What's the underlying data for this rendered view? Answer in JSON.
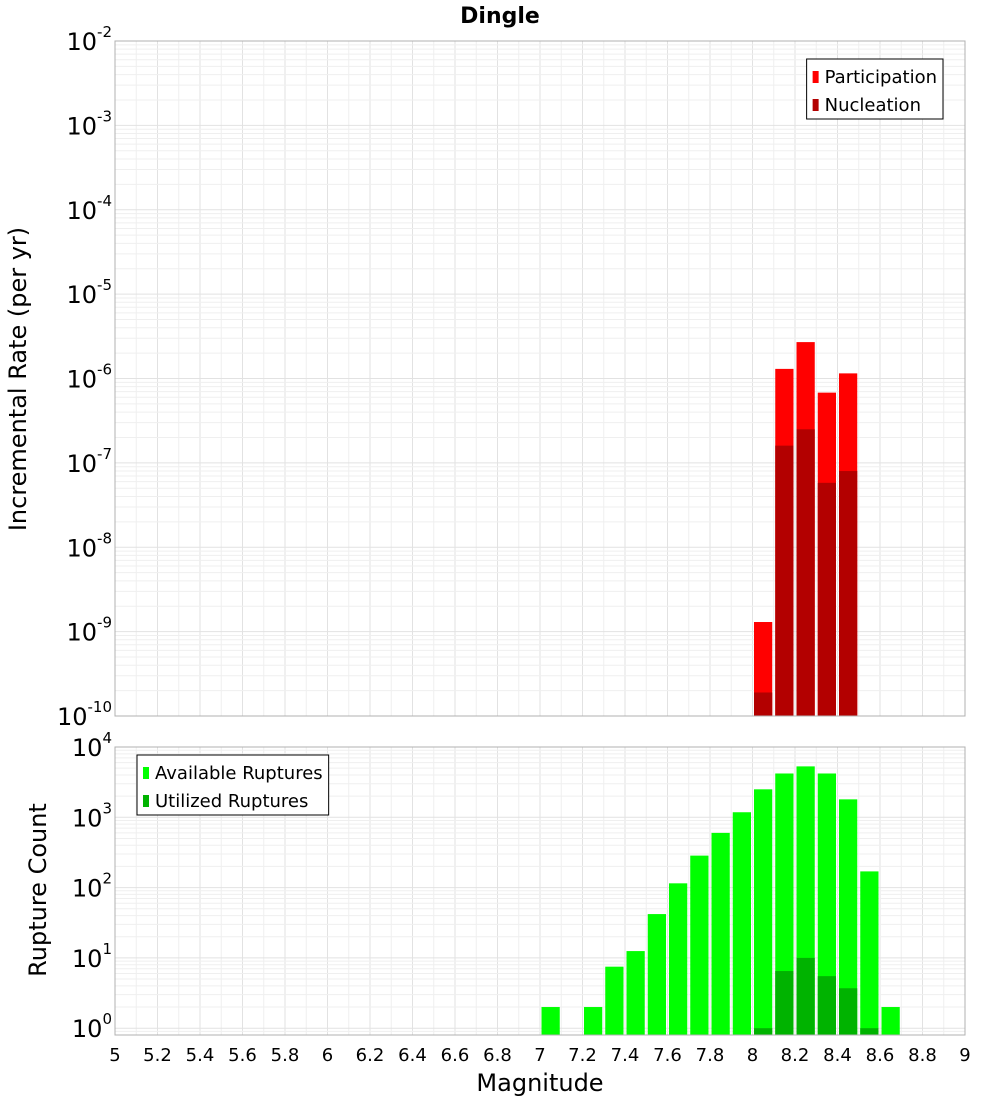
{
  "chart_data": [
    {
      "type": "bar",
      "title": "Dingle",
      "xlabel": "",
      "ylabel": "Incremental Rate (per yr)",
      "yscale": "log",
      "xlim": [
        5,
        9
      ],
      "ylim": [
        1e-10,
        0.01
      ],
      "ytick_base": "10",
      "ytick_exponents": [
        "-10",
        "-9",
        "-8",
        "-7",
        "-6",
        "-5",
        "-4",
        "-3",
        "-2"
      ],
      "grid": true,
      "legend_position": "top-right",
      "bar_width": 0.1,
      "series": [
        {
          "name": "Participation",
          "color": "#ff0000",
          "x": [
            8.05,
            8.15,
            8.25,
            8.35,
            8.45
          ],
          "values": [
            1.3e-09,
            1.3e-06,
            2.7e-06,
            6.8e-07,
            1.15e-06
          ]
        },
        {
          "name": "Nucleation",
          "color": "#b30000",
          "x": [
            8.05,
            8.15,
            8.25,
            8.35,
            8.45
          ],
          "values": [
            1.9e-10,
            1.6e-07,
            2.5e-07,
            5.8e-08,
            8e-08
          ]
        }
      ]
    },
    {
      "type": "bar",
      "title": "",
      "xlabel": "Magnitude",
      "ylabel": "Rupture Count",
      "yscale": "log",
      "xlim": [
        5,
        9
      ],
      "ylim": [
        0.8,
        10000.0
      ],
      "ytick_base": "10",
      "ytick_exponents": [
        "0",
        "1",
        "2",
        "3",
        "4"
      ],
      "xticks": [
        "5",
        "5.2",
        "5.4",
        "5.6",
        "5.8",
        "6",
        "6.2",
        "6.4",
        "6.6",
        "6.8",
        "7",
        "7.2",
        "7.4",
        "7.6",
        "7.8",
        "8",
        "8.2",
        "8.4",
        "8.6",
        "8.8",
        "9"
      ],
      "grid": true,
      "legend_position": "top-left",
      "bar_width": 0.1,
      "series": [
        {
          "name": "Available Ruptures",
          "color": "#00ff00",
          "x": [
            7.05,
            7.25,
            7.35,
            7.45,
            7.55,
            7.65,
            7.75,
            7.85,
            7.95,
            8.05,
            8.15,
            8.25,
            8.35,
            8.45,
            8.55,
            8.65
          ],
          "values": [
            2,
            2,
            7.5,
            12.5,
            42,
            115,
            285,
            600,
            1180,
            2500,
            4200,
            5300,
            4200,
            1800,
            170,
            2
          ]
        },
        {
          "name": "Utilized Ruptures",
          "color": "#00b300",
          "x": [
            8.05,
            8.15,
            8.25,
            8.35,
            8.45,
            8.55
          ],
          "values": [
            1,
            6.5,
            10,
            5.5,
            3.7,
            1
          ]
        }
      ]
    }
  ]
}
